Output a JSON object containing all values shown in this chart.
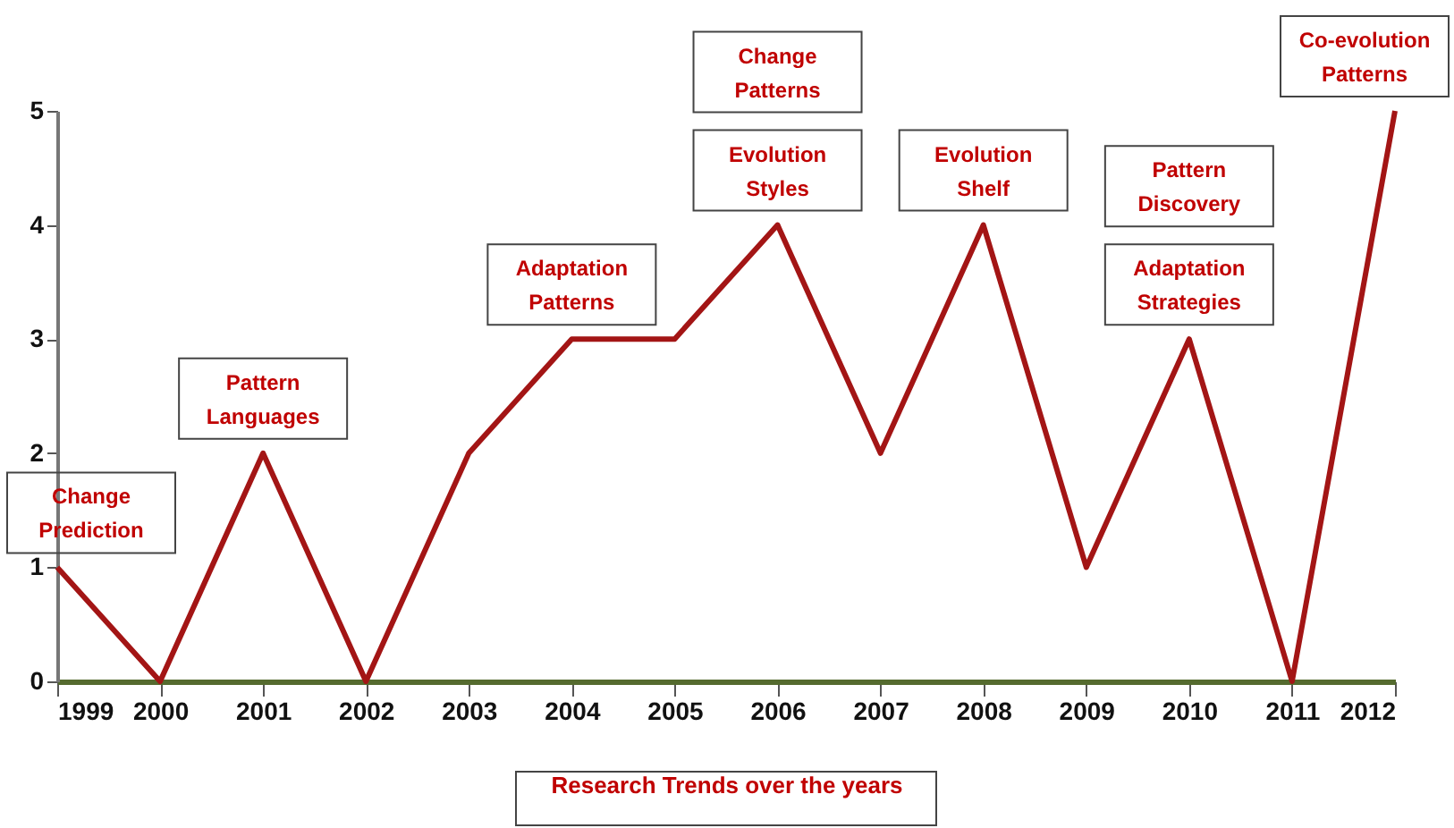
{
  "chart_data": {
    "type": "line",
    "xlabel": "Research Trends over the years",
    "x": [
      1999,
      2000,
      2001,
      2002,
      2003,
      2004,
      2005,
      2006,
      2007,
      2008,
      2009,
      2010,
      2011,
      2012
    ],
    "values": [
      1,
      0,
      2,
      0,
      2,
      3,
      3,
      4,
      2,
      4,
      1,
      3,
      0,
      5
    ],
    "color": "#a31515",
    "xlim": [
      1999,
      2012
    ],
    "xticks": [
      1999,
      2000,
      2001,
      2002,
      2003,
      2004,
      2005,
      2006,
      2007,
      2008,
      2009,
      2010,
      2011,
      2012
    ],
    "ylim": [
      0,
      5
    ],
    "yticks": [
      0,
      1,
      2,
      3,
      4,
      5
    ],
    "grid": false,
    "marker": "none",
    "line_style": "solid",
    "annotations": [
      {
        "text": "Change Prediction",
        "x": 1999,
        "y": 1
      },
      {
        "text": "Pattern Languages",
        "x": 2001,
        "y": 2
      },
      {
        "text": "Adaptation Patterns",
        "x": 2004,
        "y": 3
      },
      {
        "text": "Evolution Styles",
        "x": 2006,
        "y": 4
      },
      "Change Patterns",
      {
        "text": "Evolution Shelf",
        "x": 2008,
        "y": 4
      },
      {
        "text": "Adaptation Strategies",
        "x": 2010,
        "y": 3
      },
      "Pattern Discovery",
      {
        "text": "Co-evolution Patterns",
        "x": 2012,
        "y": 5
      }
    ]
  }
}
